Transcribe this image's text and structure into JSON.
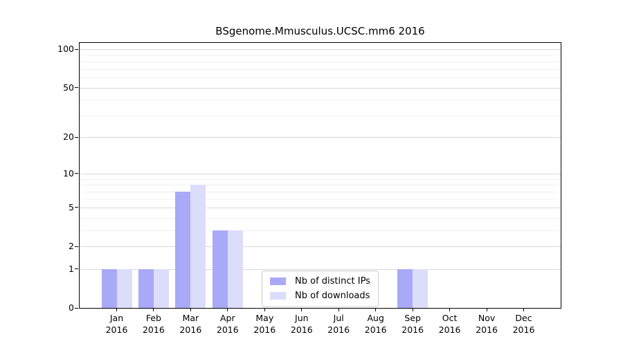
{
  "title": "BSgenome.Mmusculus.UCSC.mm6 2016",
  "chart_data": {
    "type": "bar",
    "categories": [
      "Jan",
      "Feb",
      "Mar",
      "Apr",
      "May",
      "Jun",
      "Jul",
      "Aug",
      "Sep",
      "Oct",
      "Nov",
      "Dec"
    ],
    "year": "2016",
    "series": [
      {
        "name": "Nb of distinct IPs",
        "color": "#a9a9f7",
        "values": [
          1,
          1,
          7,
          3,
          0,
          0,
          0,
          0,
          1,
          0,
          0,
          0
        ]
      },
      {
        "name": "Nb of downloads",
        "color": "#dcdcfb",
        "values": [
          1,
          1,
          8,
          3,
          0,
          0,
          0,
          0,
          1,
          0,
          0,
          0
        ]
      }
    ],
    "yscale": "log1p",
    "ylim": [
      0,
      112
    ],
    "yticks": [
      0,
      1,
      2,
      5,
      10,
      20,
      50,
      100
    ],
    "minor_gridlines": [
      3,
      4,
      6,
      7,
      8,
      9,
      30,
      40,
      60,
      70,
      80,
      90
    ],
    "grid": "horizontal",
    "legend_position": "inside-bottom-center-left",
    "colors": {
      "axis": "#000000",
      "major_grid": "#d8d8d8",
      "minor_grid": "#efefef",
      "background": "#ffffff"
    }
  }
}
